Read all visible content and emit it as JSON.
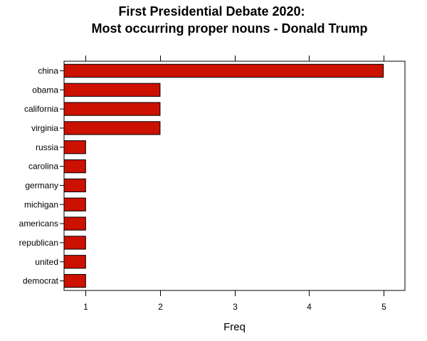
{
  "chart_data": {
    "type": "bar",
    "orientation": "horizontal",
    "title_line1": "First Presidential Debate 2020:",
    "title_line2": "Most occurring proper nouns - Donald Trump",
    "xlabel": "Freq",
    "ylabel": "",
    "categories": [
      "china",
      "obama",
      "california",
      "virginia",
      "russia",
      "carolina",
      "germany",
      "michigan",
      "americans",
      "republican",
      "united",
      "democrat"
    ],
    "values": [
      5,
      2,
      2,
      2,
      1,
      1,
      1,
      1,
      1,
      1,
      1,
      1
    ],
    "xticks": [
      "1",
      "2",
      "3",
      "4",
      "5"
    ],
    "xlim": [
      0.71,
      5.29
    ],
    "bar_color": "#cc1100",
    "grid": false
  }
}
